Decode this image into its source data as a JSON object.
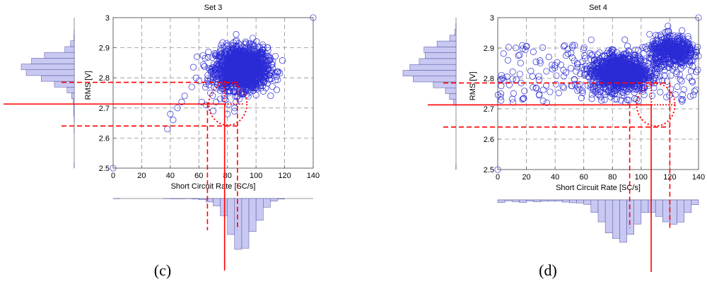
{
  "chart_data": [
    {
      "panel_label": "(c)",
      "type": "scatter",
      "title": "Set 3",
      "xlabel": "Short Circuit Rate [SC/s]",
      "ylabel": "RMS [V]",
      "xlim": [
        0,
        140
      ],
      "ylim": [
        2.5,
        3.0
      ],
      "xticks": [
        0,
        20,
        40,
        60,
        80,
        100,
        120,
        140
      ],
      "yticks": [
        2.5,
        2.6,
        2.7,
        2.8,
        2.9,
        3.0
      ],
      "grid": true,
      "cluster": {
        "center": [
          90,
          2.83
        ],
        "spread": [
          9,
          0.035
        ],
        "count": 1600
      },
      "tail_points": [
        [
          60,
          2.79
        ],
        [
          55,
          2.77
        ],
        [
          50,
          2.74
        ],
        [
          45,
          2.7
        ],
        [
          40,
          2.68
        ],
        [
          38,
          2.63
        ],
        [
          65,
          2.71
        ],
        [
          70,
          2.69
        ],
        [
          72,
          2.72
        ],
        [
          68,
          2.75
        ],
        [
          62,
          2.72
        ],
        [
          75,
          2.73
        ],
        [
          58,
          2.8
        ],
        [
          65,
          2.78
        ],
        [
          48,
          2.72
        ],
        [
          42,
          2.66
        ],
        [
          80,
          2.68
        ],
        [
          85,
          2.7
        ],
        [
          78,
          2.74
        ]
      ],
      "outliers": [
        [
          0,
          2.5
        ],
        [
          140,
          3.0
        ]
      ],
      "mean_sc": 78,
      "mean_rms": 2.713,
      "sc_band": [
        66,
        87
      ],
      "rms_band": [
        2.64,
        2.785
      ]
    },
    {
      "panel_label": "(d)",
      "type": "scatter",
      "title": "Set 4",
      "xlabel": "Short Circuit Rate [SC/s]",
      "ylabel": "RMS [V]",
      "xlim": [
        0,
        140
      ],
      "ylim": [
        2.5,
        3.0
      ],
      "xticks": [
        0,
        20,
        40,
        60,
        80,
        100,
        120,
        140
      ],
      "yticks": [
        2.5,
        2.6,
        2.7,
        2.8,
        2.9,
        3.0
      ],
      "grid": true,
      "clusters": [
        {
          "center": [
            85,
            2.82
          ],
          "spread": [
            10,
            0.03
          ],
          "count": 1000
        },
        {
          "center": [
            122,
            2.89
          ],
          "spread": [
            8,
            0.025
          ],
          "count": 450
        }
      ],
      "scatter_band": {
        "x": [
          0,
          140
        ],
        "y": [
          2.72,
          2.91
        ],
        "count": 220
      },
      "outliers": [
        [
          0,
          2.5
        ],
        [
          140,
          3.0
        ]
      ],
      "mean_sc": 107,
      "mean_rms": 2.713,
      "sc_band": [
        92,
        120
      ],
      "rms_band": [
        2.64,
        2.785
      ]
    }
  ],
  "colors": {
    "points": "#2b2bd6",
    "guides": "#ff0000",
    "histogram_fill": "#c8c8f2",
    "histogram_edge": "#5050a0",
    "grid": "#909090"
  }
}
